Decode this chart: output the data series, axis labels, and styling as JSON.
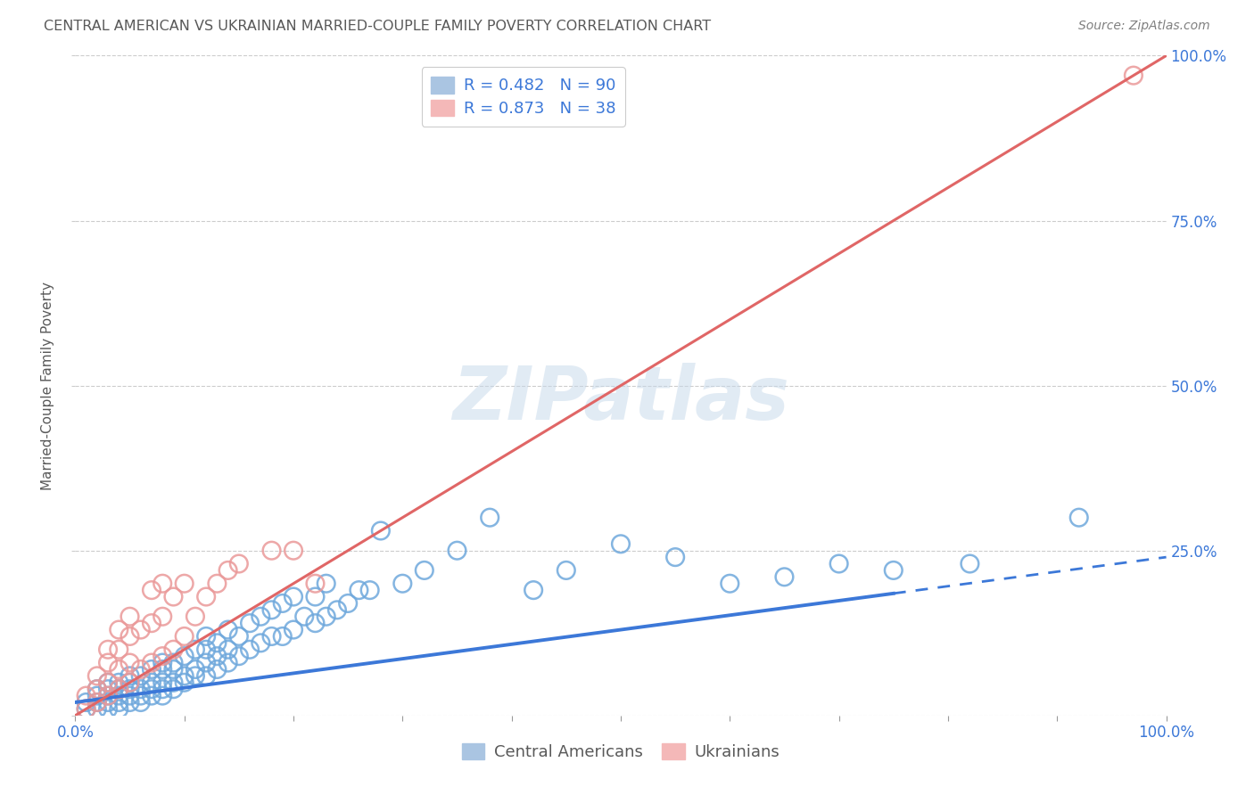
{
  "title": "CENTRAL AMERICAN VS UKRAINIAN MARRIED-COUPLE FAMILY POVERTY CORRELATION CHART",
  "source": "Source: ZipAtlas.com",
  "ylabel": "Married-Couple Family Poverty",
  "watermark": "ZIPatlas",
  "xlim": [
    0,
    1
  ],
  "ylim": [
    0,
    1
  ],
  "xtick_positions": [
    0.0,
    0.1,
    0.2,
    0.3,
    0.4,
    0.5,
    0.6,
    0.7,
    0.8,
    0.9,
    1.0
  ],
  "ytick_positions": [
    0.0,
    0.25,
    0.5,
    0.75,
    1.0
  ],
  "right_yticklabels": [
    "",
    "25.0%",
    "50.0%",
    "75.0%",
    "100.0%"
  ],
  "bottom_xtick_label_left": "0.0%",
  "bottom_xtick_label_right": "100.0%",
  "blue_R": 0.482,
  "blue_N": 90,
  "pink_R": 0.873,
  "pink_N": 38,
  "blue_color": "#6fa8dc",
  "pink_color": "#ea9999",
  "blue_line_color": "#3c78d8",
  "pink_line_color": "#e06666",
  "label_color": "#3c78d8",
  "title_color": "#595959",
  "source_color": "#808080",
  "grid_color": "#cccccc",
  "background_color": "#ffffff",
  "blue_scatter_x": [
    0.01,
    0.01,
    0.02,
    0.02,
    0.02,
    0.02,
    0.03,
    0.03,
    0.03,
    0.03,
    0.03,
    0.04,
    0.04,
    0.04,
    0.04,
    0.04,
    0.05,
    0.05,
    0.05,
    0.05,
    0.05,
    0.06,
    0.06,
    0.06,
    0.06,
    0.07,
    0.07,
    0.07,
    0.07,
    0.08,
    0.08,
    0.08,
    0.08,
    0.08,
    0.09,
    0.09,
    0.09,
    0.09,
    0.1,
    0.1,
    0.1,
    0.11,
    0.11,
    0.11,
    0.12,
    0.12,
    0.12,
    0.12,
    0.13,
    0.13,
    0.13,
    0.14,
    0.14,
    0.14,
    0.15,
    0.15,
    0.16,
    0.16,
    0.17,
    0.17,
    0.18,
    0.18,
    0.19,
    0.19,
    0.2,
    0.2,
    0.21,
    0.22,
    0.22,
    0.23,
    0.23,
    0.24,
    0.25,
    0.26,
    0.27,
    0.28,
    0.3,
    0.32,
    0.35,
    0.38,
    0.42,
    0.45,
    0.5,
    0.55,
    0.6,
    0.65,
    0.7,
    0.75,
    0.82,
    0.92
  ],
  "blue_scatter_y": [
    0.01,
    0.02,
    0.01,
    0.02,
    0.03,
    0.04,
    0.01,
    0.02,
    0.03,
    0.04,
    0.05,
    0.01,
    0.02,
    0.03,
    0.04,
    0.05,
    0.02,
    0.03,
    0.04,
    0.05,
    0.06,
    0.02,
    0.03,
    0.04,
    0.06,
    0.03,
    0.04,
    0.05,
    0.07,
    0.03,
    0.04,
    0.05,
    0.07,
    0.08,
    0.04,
    0.05,
    0.07,
    0.08,
    0.05,
    0.06,
    0.09,
    0.06,
    0.07,
    0.1,
    0.06,
    0.08,
    0.1,
    0.12,
    0.07,
    0.09,
    0.11,
    0.08,
    0.1,
    0.13,
    0.09,
    0.12,
    0.1,
    0.14,
    0.11,
    0.15,
    0.12,
    0.16,
    0.12,
    0.17,
    0.13,
    0.18,
    0.15,
    0.14,
    0.18,
    0.15,
    0.2,
    0.16,
    0.17,
    0.19,
    0.19,
    0.28,
    0.2,
    0.22,
    0.25,
    0.3,
    0.19,
    0.22,
    0.26,
    0.24,
    0.2,
    0.21,
    0.23,
    0.22,
    0.23,
    0.3
  ],
  "pink_scatter_x": [
    0.01,
    0.01,
    0.02,
    0.02,
    0.02,
    0.03,
    0.03,
    0.03,
    0.03,
    0.04,
    0.04,
    0.04,
    0.04,
    0.05,
    0.05,
    0.05,
    0.05,
    0.06,
    0.06,
    0.07,
    0.07,
    0.07,
    0.08,
    0.08,
    0.08,
    0.09,
    0.09,
    0.1,
    0.1,
    0.11,
    0.12,
    0.13,
    0.14,
    0.15,
    0.18,
    0.2,
    0.22,
    0.97
  ],
  "pink_scatter_y": [
    0.01,
    0.03,
    0.02,
    0.04,
    0.06,
    0.03,
    0.05,
    0.08,
    0.1,
    0.04,
    0.07,
    0.1,
    0.13,
    0.05,
    0.08,
    0.12,
    0.15,
    0.07,
    0.13,
    0.08,
    0.14,
    0.19,
    0.09,
    0.15,
    0.2,
    0.1,
    0.18,
    0.12,
    0.2,
    0.15,
    0.18,
    0.2,
    0.22,
    0.23,
    0.25,
    0.25,
    0.2,
    0.97
  ],
  "blue_line_intercept": 0.02,
  "blue_line_slope": 0.22,
  "blue_line_solid_end": 0.75,
  "pink_line_intercept": 0.0,
  "pink_line_slope": 1.0,
  "legend_blue_label": "R = 0.482   N = 90",
  "legend_pink_label": "R = 0.873   N = 38",
  "bottom_legend_blue": "Central Americans",
  "bottom_legend_pink": "Ukrainians"
}
